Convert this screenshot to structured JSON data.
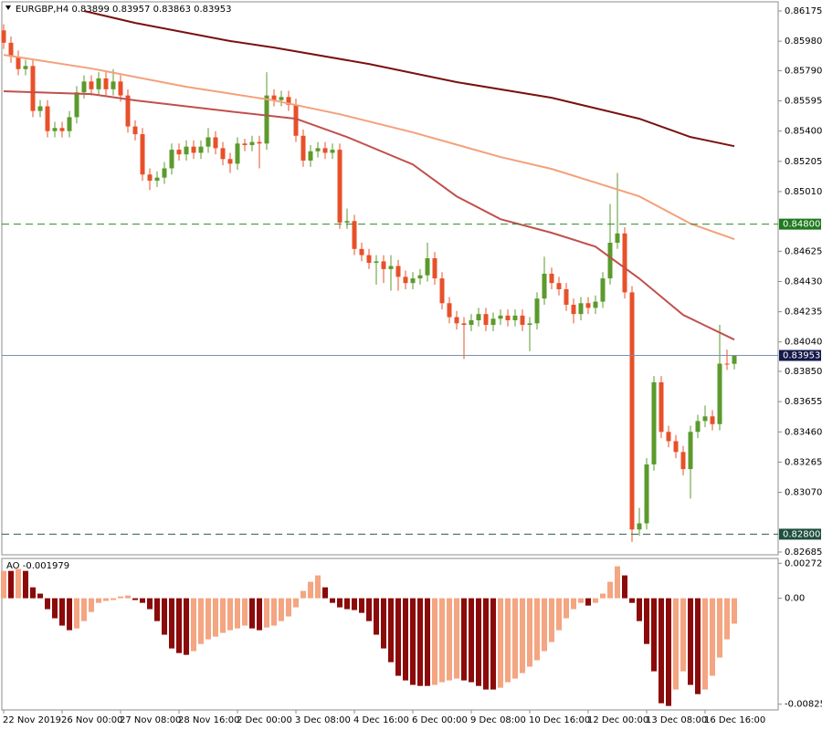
{
  "chart_data": [
    {
      "type": "candlestick",
      "symbol": "EURGBP,H4",
      "up_color": "#5b9a2c",
      "down_color": "#e8502a",
      "ylim": [
        0.82667,
        0.86234
      ],
      "yticks": [
        0.86175,
        {
          "value": 0.8598,
          "label": "0.85980"
        },
        {
          "value": 0.8579,
          "label": "0.85790"
        },
        0.85595,
        {
          "value": 0.854,
          "label": "0.85400"
        },
        0.85205,
        {
          "value": 0.8501,
          "label": "0.85010"
        },
        0.84625,
        {
          "value": 0.8443,
          "label": "0.84430"
        },
        0.84235,
        {
          "value": 0.8404,
          "label": "0.84040"
        },
        {
          "value": 0.8385,
          "label": "0.83850"
        },
        0.83655,
        {
          "value": 0.8346,
          "label": "0.83460"
        },
        0.83265,
        {
          "value": 0.8307,
          "label": "0.83070"
        },
        0.82685
      ],
      "categories": [
        "22 Nov 2019",
        null,
        null,
        null,
        null,
        null,
        null,
        null,
        "26 Nov 00:00",
        null,
        null,
        null,
        null,
        null,
        null,
        null,
        "27 Nov 08:00",
        null,
        null,
        null,
        null,
        null,
        null,
        null,
        "28 Nov 16:00",
        null,
        null,
        null,
        null,
        null,
        null,
        null,
        "2 Dec 00:00",
        null,
        null,
        null,
        null,
        null,
        null,
        null,
        "3 Dec 08:00",
        null,
        null,
        null,
        null,
        null,
        null,
        null,
        "4 Dec 16:00",
        null,
        null,
        null,
        null,
        null,
        null,
        null,
        "6 Dec 00:00",
        null,
        null,
        null,
        null,
        null,
        null,
        null,
        "9 Dec 08:00",
        null,
        null,
        null,
        null,
        null,
        null,
        null,
        "10 Dec 16:00",
        null,
        null,
        null,
        null,
        null,
        null,
        null,
        "12 Dec 00:00",
        null,
        null,
        null,
        null,
        null,
        null,
        null,
        "13 Dec 08:00",
        null,
        null,
        null,
        null,
        null,
        null,
        null,
        "16 Dec 16:00",
        null,
        null,
        null,
        null
      ],
      "ohlc": [
        [
          0.8605,
          0.8609,
          0.8593,
          0.8597
        ],
        [
          0.8597,
          0.8601,
          0.8584,
          0.8588
        ],
        [
          0.8588,
          0.8592,
          0.8576,
          0.858
        ],
        [
          0.858,
          0.8586,
          0.8576,
          0.8582
        ],
        [
          0.8582,
          0.8586,
          0.8549,
          0.8553
        ],
        [
          0.8553,
          0.856,
          0.8549,
          0.8556
        ],
        [
          0.8556,
          0.856,
          0.8536,
          0.854
        ],
        [
          0.854,
          0.8546,
          0.8536,
          0.8542
        ],
        [
          0.8542,
          0.8546,
          0.8536,
          0.854
        ],
        [
          0.854,
          0.8553,
          0.8536,
          0.8549
        ],
        [
          0.8549,
          0.8569,
          0.8545,
          0.8565
        ],
        [
          0.8565,
          0.8576,
          0.8561,
          0.8572
        ],
        [
          0.8572,
          0.8576,
          0.8563,
          0.8567
        ],
        [
          0.8567,
          0.8578,
          0.8563,
          0.8574
        ],
        [
          0.8574,
          0.8578,
          0.8563,
          0.8567
        ],
        [
          0.8567,
          0.858,
          0.8563,
          0.8572
        ],
        [
          0.8572,
          0.8576,
          0.8559,
          0.8563
        ],
        [
          0.8563,
          0.8567,
          0.8539,
          0.8543
        ],
        [
          0.8543,
          0.8547,
          0.8534,
          0.8538
        ],
        [
          0.8538,
          0.8542,
          0.8508,
          0.8512
        ],
        [
          0.8512,
          0.8516,
          0.8502,
          0.8508
        ],
        [
          0.8508,
          0.8514,
          0.8504,
          0.851
        ],
        [
          0.851,
          0.852,
          0.8506,
          0.8516
        ],
        [
          0.8516,
          0.8532,
          0.8512,
          0.8528
        ],
        [
          0.8528,
          0.8532,
          0.8521,
          0.8525
        ],
        [
          0.8525,
          0.8534,
          0.8521,
          0.853
        ],
        [
          0.853,
          0.8534,
          0.8522,
          0.8526
        ],
        [
          0.8526,
          0.8534,
          0.8522,
          0.853
        ],
        [
          0.853,
          0.8542,
          0.8526,
          0.8536
        ],
        [
          0.8536,
          0.854,
          0.8525,
          0.8529
        ],
        [
          0.8529,
          0.8533,
          0.8518,
          0.8522
        ],
        [
          0.8522,
          0.8526,
          0.8513,
          0.8519
        ],
        [
          0.8519,
          0.8536,
          0.8515,
          0.8532
        ],
        [
          0.8532,
          0.8535,
          0.8527,
          0.8531
        ],
        [
          0.8531,
          0.8537,
          0.8527,
          0.8533
        ],
        [
          0.8533,
          0.8537,
          0.8516,
          0.8532
        ],
        [
          0.8532,
          0.8578,
          0.8528,
          0.8563
        ],
        [
          0.8563,
          0.8567,
          0.8556,
          0.856
        ],
        [
          0.856,
          0.8566,
          0.8556,
          0.8562
        ],
        [
          0.8562,
          0.8566,
          0.8553,
          0.8557
        ],
        [
          0.8557,
          0.8561,
          0.8533,
          0.8537
        ],
        [
          0.8537,
          0.8541,
          0.8517,
          0.8521
        ],
        [
          0.8521,
          0.8531,
          0.8517,
          0.8527
        ],
        [
          0.8527,
          0.8533,
          0.8523,
          0.8529
        ],
        [
          0.8529,
          0.8533,
          0.8522,
          0.8526
        ],
        [
          0.8526,
          0.8532,
          0.8522,
          0.8528
        ],
        [
          0.8528,
          0.8532,
          0.8477,
          0.8481
        ],
        [
          0.8481,
          0.849,
          0.8477,
          0.8482
        ],
        [
          0.8482,
          0.8486,
          0.846,
          0.8464
        ],
        [
          0.8464,
          0.8468,
          0.8456,
          0.846
        ],
        [
          0.846,
          0.8464,
          0.8451,
          0.8455
        ],
        [
          0.8455,
          0.846,
          0.8441,
          0.8456
        ],
        [
          0.8456,
          0.846,
          0.8442,
          0.8451
        ],
        [
          0.8451,
          0.846,
          0.8437,
          0.8453
        ],
        [
          0.8453,
          0.8457,
          0.8437,
          0.8446
        ],
        [
          0.8446,
          0.845,
          0.8438,
          0.8442
        ],
        [
          0.8442,
          0.8449,
          0.8438,
          0.8445
        ],
        [
          0.8445,
          0.8451,
          0.8441,
          0.8447
        ],
        [
          0.8447,
          0.8468,
          0.8443,
          0.8458
        ],
        [
          0.8458,
          0.8462,
          0.8441,
          0.8445
        ],
        [
          0.8445,
          0.8449,
          0.8425,
          0.8429
        ],
        [
          0.8429,
          0.8433,
          0.8416,
          0.842
        ],
        [
          0.842,
          0.8424,
          0.8412,
          0.8416
        ],
        [
          0.8416,
          0.842,
          0.8393,
          0.8415
        ],
        [
          0.8415,
          0.8422,
          0.8411,
          0.8418
        ],
        [
          0.8418,
          0.8426,
          0.8414,
          0.8422
        ],
        [
          0.8422,
          0.8426,
          0.8411,
          0.8415
        ],
        [
          0.8415,
          0.8423,
          0.8411,
          0.8419
        ],
        [
          0.8419,
          0.8425,
          0.8415,
          0.8421
        ],
        [
          0.8421,
          0.8425,
          0.8414,
          0.8418
        ],
        [
          0.8418,
          0.8425,
          0.8414,
          0.8421
        ],
        [
          0.8421,
          0.8425,
          0.8411,
          0.8415
        ],
        [
          0.8415,
          0.842,
          0.8398,
          0.8416
        ],
        [
          0.8416,
          0.8436,
          0.8412,
          0.8432
        ],
        [
          0.8432,
          0.8459,
          0.8428,
          0.8448
        ],
        [
          0.8448,
          0.8452,
          0.8438,
          0.8442
        ],
        [
          0.8442,
          0.8446,
          0.8434,
          0.8438
        ],
        [
          0.8438,
          0.8442,
          0.8424,
          0.8428
        ],
        [
          0.8428,
          0.8432,
          0.8416,
          0.8422
        ],
        [
          0.8422,
          0.8433,
          0.8418,
          0.8429
        ],
        [
          0.8429,
          0.8433,
          0.8422,
          0.8426
        ],
        [
          0.8426,
          0.8434,
          0.8422,
          0.843
        ],
        [
          0.843,
          0.8449,
          0.8426,
          0.8445
        ],
        [
          0.8445,
          0.8493,
          0.8441,
          0.8468
        ],
        [
          0.8468,
          0.8513,
          0.8464,
          0.8474
        ],
        [
          0.8474,
          0.8478,
          0.8432,
          0.8436
        ],
        [
          0.8436,
          0.844,
          0.8275,
          0.8283
        ],
        [
          0.8283,
          0.8297,
          0.8279,
          0.8287
        ],
        [
          0.8287,
          0.8329,
          0.8283,
          0.8325
        ],
        [
          0.8325,
          0.8382,
          0.8321,
          0.8378
        ],
        [
          0.8378,
          0.8382,
          0.8342,
          0.8346
        ],
        [
          0.8346,
          0.835,
          0.8336,
          0.834
        ],
        [
          0.834,
          0.8344,
          0.8329,
          0.8333
        ],
        [
          0.8333,
          0.8337,
          0.8318,
          0.8322
        ],
        [
          0.8322,
          0.835,
          0.8303,
          0.8346
        ],
        [
          0.8346,
          0.8357,
          0.8342,
          0.8353
        ],
        [
          0.8353,
          0.8363,
          0.8349,
          0.8356
        ],
        [
          0.8356,
          0.836,
          0.8347,
          0.8351
        ],
        [
          0.8351,
          0.8415,
          0.8347,
          0.839
        ],
        [
          0.839,
          0.8399,
          0.8386,
          0.83899
        ],
        [
          0.83899,
          0.83957,
          0.83863,
          0.83953
        ]
      ],
      "lines": [
        {
          "color": "#7a1010",
          "x": [
            11,
            18,
            31,
            37,
            50,
            62,
            75,
            87,
            94,
            100
          ],
          "values": [
            0.86175,
            0.86098,
            0.85981,
            0.85939,
            0.85833,
            0.85716,
            0.85615,
            0.8548,
            0.85362,
            0.85303
          ]
        },
        {
          "color": "#f4a07a",
          "x": [
            0,
            12,
            25,
            37,
            46,
            56,
            68,
            75,
            81,
            87,
            94,
            100
          ],
          "values": [
            0.85892,
            0.85804,
            0.85686,
            0.85598,
            0.85509,
            0.85392,
            0.85233,
            0.85156,
            0.85068,
            0.84979,
            0.84803,
            0.84703
          ]
        },
        {
          "color": "#c0504d",
          "x": [
            0,
            12,
            18,
            31,
            40,
            47,
            56,
            62,
            68,
            75,
            81,
            87,
            93,
            100
          ],
          "values": [
            0.85657,
            0.85639,
            0.85598,
            0.85527,
            0.8548,
            0.85362,
            0.85185,
            0.84979,
            0.84832,
            0.84744,
            0.84655,
            0.84449,
            0.84214,
            0.84055
          ]
        }
      ],
      "hlines": [
        {
          "value": 0.848,
          "label": "0.84800",
          "color": "#2e8b2e",
          "label_bg": "#1f7a1f",
          "dash": true
        },
        {
          "value": 0.828,
          "label": "0.82800",
          "color": "#2f5f4f",
          "label_bg": "#1f4f3f",
          "dash": true
        },
        {
          "value": 0.83953,
          "label": "0.83953",
          "color": "#7d8fb0",
          "label_bg": "#141a4a",
          "dash": false
        }
      ]
    },
    {
      "type": "bar",
      "title": "AO",
      "up_color": "#f4a582",
      "down_color": "#8b0a0a",
      "ylim": [
        -0.0087,
        0.0031
      ],
      "yticks": [
        0.002723,
        {
          "value": 0,
          "label": "0.00"
        },
        -0.008254
      ],
      "values": [
        0.00213,
        0.00213,
        0.00228,
        0.00213,
        0.00085,
        0.00036,
        -0.00085,
        -0.00156,
        -0.00213,
        -0.00249,
        -0.00235,
        -0.00178,
        -0.00107,
        -0.00036,
        -0.00021,
        -0.00014,
        0.00014,
        0.00021,
        -0.00014,
        -0.00036,
        -0.00085,
        -0.00178,
        -0.00284,
        -0.00391,
        -0.00427,
        -0.00441,
        -0.00412,
        -0.00356,
        -0.0032,
        -0.00299,
        -0.0027,
        -0.00249,
        -0.00235,
        -0.00213,
        -0.00235,
        -0.00249,
        -0.00228,
        -0.00213,
        -0.00178,
        -0.00142,
        -0.00071,
        0.00057,
        0.00128,
        0.00178,
        0.00085,
        -0.00036,
        -0.00071,
        -0.00085,
        -0.00092,
        -0.00114,
        -0.00178,
        -0.00284,
        -0.00391,
        -0.00498,
        -0.00604,
        -0.0064,
        -0.00675,
        -0.00683,
        -0.00683,
        -0.00675,
        -0.00654,
        -0.0064,
        -0.00626,
        -0.0064,
        -0.00654,
        -0.00683,
        -0.00711,
        -0.00711,
        -0.00697,
        -0.00654,
        -0.00626,
        -0.00583,
        -0.00533,
        -0.00483,
        -0.00412,
        -0.00341,
        -0.00249,
        -0.00156,
        -0.00085,
        -0.00036,
        -0.00057,
        -0.00036,
        0.00036,
        0.00128,
        0.00249,
        0.00178,
        -0.00036,
        -0.00178,
        -0.00356,
        -0.00569,
        -0.00818,
        -0.00839,
        -0.00711,
        -0.00569,
        -0.00675,
        -0.00747,
        -0.00711,
        -0.00604,
        -0.00462,
        -0.0032,
        -0.001979
      ]
    }
  ]
}
